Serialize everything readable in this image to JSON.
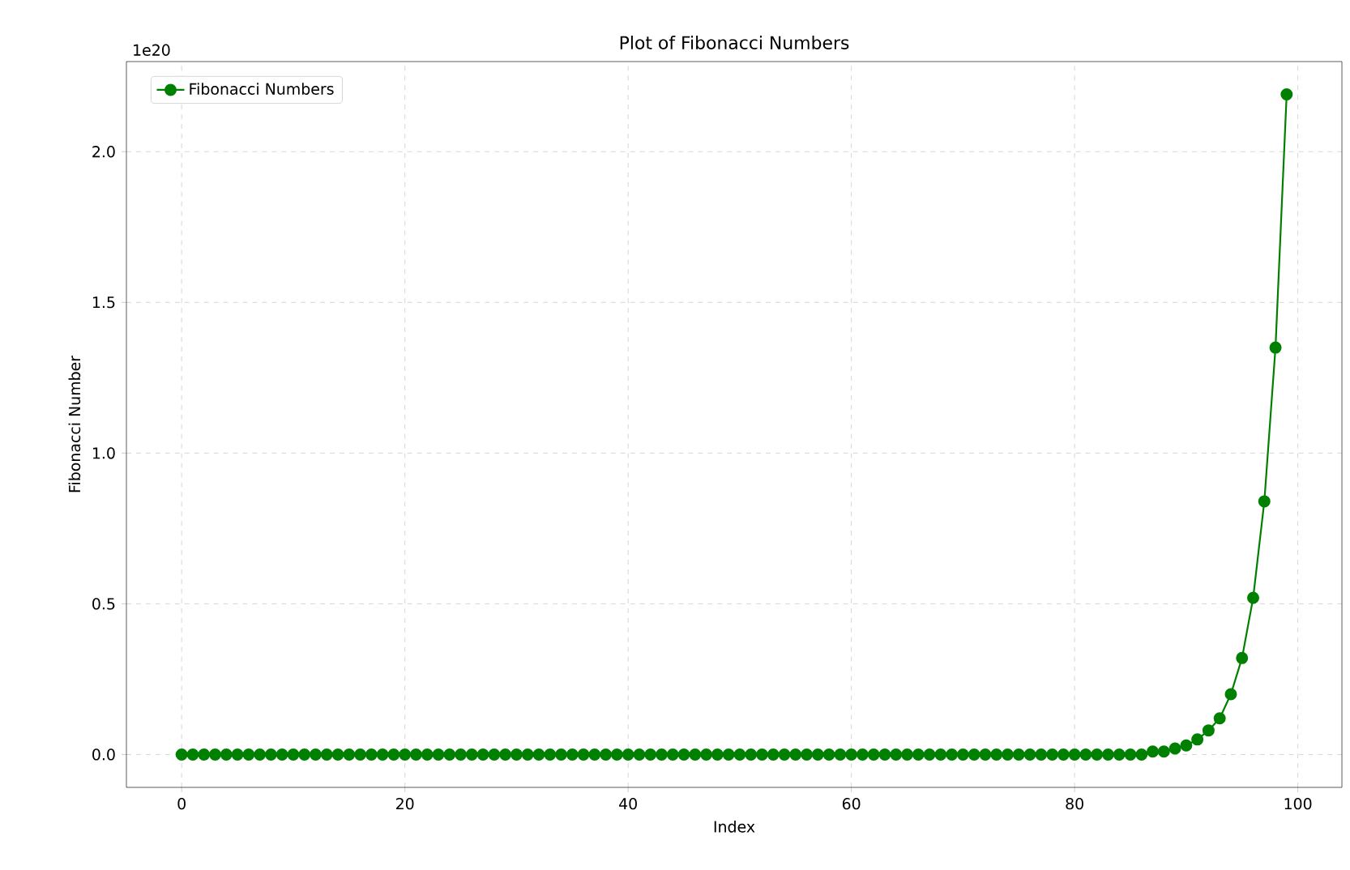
{
  "chart_data": {
    "type": "line",
    "title": "Plot of Fibonacci Numbers",
    "xlabel": "Index",
    "ylabel": "Fibonacci Number",
    "annotations": [
      "1e20"
    ],
    "x": [
      0,
      1,
      2,
      3,
      4,
      5,
      6,
      7,
      8,
      9,
      10,
      11,
      12,
      13,
      14,
      15,
      16,
      17,
      18,
      19,
      20,
      21,
      22,
      23,
      24,
      25,
      26,
      27,
      28,
      29,
      30,
      31,
      32,
      33,
      34,
      35,
      36,
      37,
      38,
      39,
      40,
      41,
      42,
      43,
      44,
      45,
      46,
      47,
      48,
      49,
      50,
      51,
      52,
      53,
      54,
      55,
      56,
      57,
      58,
      59,
      60,
      61,
      62,
      63,
      64,
      65,
      66,
      67,
      68,
      69,
      70,
      71,
      72,
      73,
      74,
      75,
      76,
      77,
      78,
      79,
      80,
      81,
      82,
      83,
      84,
      85,
      86,
      87,
      88,
      89,
      90,
      91,
      92,
      93,
      94,
      95,
      96,
      97,
      98,
      99
    ],
    "series": [
      {
        "name": "Fibonacci Numbers",
        "color": "#008000",
        "values": [
          0,
          0,
          0,
          0,
          0,
          0,
          0,
          0,
          0,
          0,
          0,
          0,
          0,
          0,
          0,
          0,
          0,
          0,
          0,
          0,
          0,
          0,
          0,
          0,
          0,
          0,
          0,
          0,
          0,
          0,
          0,
          0,
          0,
          0,
          0,
          0,
          0,
          0,
          0,
          0,
          0,
          0,
          0,
          0,
          0,
          0,
          0,
          0,
          0,
          0,
          0,
          0,
          0,
          0,
          0,
          0,
          0,
          0,
          0,
          0,
          0,
          0,
          0,
          0,
          0,
          0,
          0,
          0,
          0,
          0,
          0,
          0,
          0,
          0,
          0,
          0,
          0,
          0,
          0,
          0,
          0,
          0,
          0,
          0,
          0,
          0,
          0,
          0.01,
          0.01,
          0.02,
          0.03,
          0.05,
          0.08,
          0.12,
          0.2,
          0.32,
          0.52,
          0.84,
          1.35,
          2.19
        ]
      }
    ],
    "xlim": [
      -4.95,
      103.95
    ],
    "xticks": [
      0,
      20,
      40,
      60,
      80,
      100
    ],
    "ylim": [
      -0.109,
      2.299
    ],
    "yticks": [
      {
        "value": 0,
        "label": "0.0"
      },
      0.5,
      {
        "value": 1,
        "label": "1.0"
      },
      1.5,
      {
        "value": 2,
        "label": "2.0"
      }
    ],
    "grid": true,
    "legend": "top left",
    "marker": "circle",
    "line_style": "solid"
  }
}
